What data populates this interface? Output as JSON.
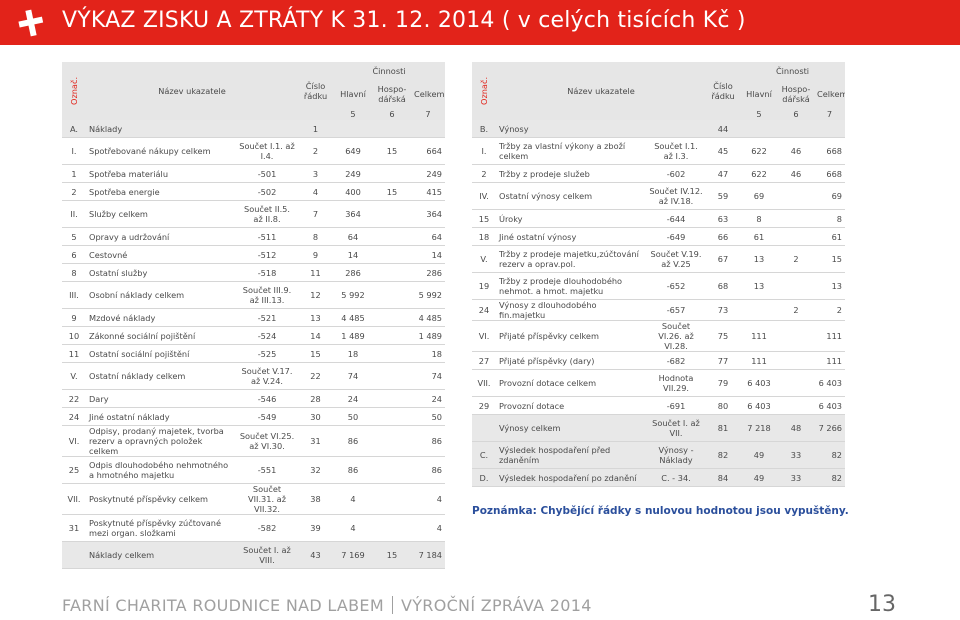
{
  "header": {
    "title": "VÝKAZ ZISKU A ZTRÁTY K 31. 12. 2014 ( v celých tisících Kč )"
  },
  "left_table": {
    "header": {
      "oznac": "Označ.",
      "nazev": "Název ukazatele",
      "cislo": "Číslo řádku",
      "cinnosti": "Činnosti",
      "hlavni": "Hlavní",
      "hospodarska": "Hospo-dářská",
      "celkem": "Celkem",
      "col5": "5",
      "col6": "6",
      "col7": "7"
    },
    "rows": [
      [
        "A.",
        "Náklady",
        null,
        "1",
        null,
        null,
        null
      ],
      [
        "I.",
        "Spotřebované nákupy celkem",
        "Součet I.1. až I.4.",
        "2",
        "649",
        "15",
        "664"
      ],
      [
        "1",
        "Spotřeba materiálu",
        "-501",
        "3",
        "249",
        null,
        "249"
      ],
      [
        "2",
        "Spotřeba energie",
        "-502",
        "4",
        "400",
        "15",
        "415"
      ],
      [
        "II.",
        "Služby celkem",
        "Součet II.5. až II.8.",
        "7",
        "364",
        null,
        "364"
      ],
      [
        "5",
        "Opravy a udržování",
        "-511",
        "8",
        "64",
        null,
        "64"
      ],
      [
        "6",
        "Cestovné",
        "-512",
        "9",
        "14",
        null,
        "14"
      ],
      [
        "8",
        "Ostatní služby",
        "-518",
        "11",
        "286",
        null,
        "286"
      ],
      [
        "III.",
        "Osobní náklady celkem",
        "Součet III.9. až III.13.",
        "12",
        "5 992",
        null,
        "5 992"
      ],
      [
        "9",
        "Mzdové náklady",
        "-521",
        "13",
        "4 485",
        null,
        "4 485"
      ],
      [
        "10",
        "Zákonné sociální pojištění",
        "-524",
        "14",
        "1 489",
        null,
        "1 489"
      ],
      [
        "11",
        "Ostatní sociální pojištění",
        "-525",
        "15",
        "18",
        null,
        "18"
      ],
      [
        "V.",
        "Ostatní náklady celkem",
        "Součet V.17. až V.24.",
        "22",
        "74",
        null,
        "74"
      ],
      [
        "22",
        "Dary",
        "-546",
        "28",
        "24",
        null,
        "24"
      ],
      [
        "24",
        "Jiné ostatní náklady",
        "-549",
        "30",
        "50",
        null,
        "50"
      ],
      [
        "VI.",
        "Odpisy, prodaný majetek, tvorba rezerv a opravných položek celkem",
        "Součet VI.25. až VI.30.",
        "31",
        "86",
        null,
        "86"
      ],
      [
        "25",
        "Odpis dlouhodobého nehmotného a hmotného majetku",
        "-551",
        "32",
        "86",
        null,
        "86"
      ],
      [
        "VII.",
        "Poskytnuté příspěvky celkem",
        "Součet VII.31. až VII.32.",
        "38",
        "4",
        null,
        "4"
      ],
      [
        "31",
        "Poskytnuté příspěvky zúčtované mezi organ. složkami",
        "-582",
        "39",
        "4",
        null,
        "4"
      ],
      [
        null,
        "Náklady celkem",
        "Součet I. až VIII.",
        "43",
        "7 169",
        "15",
        "7 184"
      ]
    ]
  },
  "right_table": {
    "header": {
      "oznac": "Označ.",
      "nazev": "Název ukazatele",
      "cislo": "Číslo řádku",
      "cinnosti": "Činnosti",
      "hlavni": "Hlavní",
      "hospodarska": "Hospo-dářská",
      "celkem": "Celkem",
      "col5": "5",
      "col6": "6",
      "col7": "7"
    },
    "rows": [
      [
        "B.",
        "Výnosy",
        null,
        "44",
        null,
        null,
        null
      ],
      [
        "I.",
        "Tržby za vlastní výkony a zboží celkem",
        "Součet I.1. až I.3.",
        "45",
        "622",
        "46",
        "668"
      ],
      [
        "2",
        "Tržby z prodeje služeb",
        "-602",
        "47",
        "622",
        "46",
        "668"
      ],
      [
        "IV.",
        "Ostatní výnosy celkem",
        "Součet IV.12. až IV.18.",
        "59",
        "69",
        null,
        "69"
      ],
      [
        "15",
        "Úroky",
        "-644",
        "63",
        "8",
        null,
        "8"
      ],
      [
        "18",
        "Jiné ostatní výnosy",
        "-649",
        "66",
        "61",
        null,
        "61"
      ],
      [
        "V.",
        "Tržby z prodeje majetku,zúčtování rezerv a oprav.pol.",
        "Součet V.19. až V.25",
        "67",
        "13",
        "2",
        "15"
      ],
      [
        "19",
        "Tržby z prodeje dlouhodobého nehmot. a hmot. majetku",
        "-652",
        "68",
        "13",
        null,
        "13"
      ],
      [
        "24",
        "Výnosy z dlouhodobého fin.majetku",
        "-657",
        "73",
        null,
        "2",
        "2"
      ],
      [
        "VI.",
        "Přijaté příspěvky celkem",
        "Součet VI.26. až VI.28.",
        "75",
        "111",
        null,
        "111"
      ],
      [
        "27",
        "Přijaté příspěvky (dary)",
        "-682",
        "77",
        "111",
        null,
        "111"
      ],
      [
        "VII.",
        "Provozní dotace celkem",
        "Hodnota VII.29.",
        "79",
        "6 403",
        null,
        "6 403"
      ],
      [
        "29",
        "Provozní dotace",
        "-691",
        "80",
        "6 403",
        null,
        "6 403"
      ],
      [
        null,
        "Výnosy celkem",
        "Součet I. až VII.",
        "81",
        "7 218",
        "48",
        "7 266"
      ],
      [
        "C.",
        "Výsledek hospodaření před zdaněním",
        "Výnosy - Náklady",
        "82",
        "49",
        "33",
        "82"
      ],
      [
        "D.",
        "Výsledek hospodaření po zdanění",
        "C. - 34.",
        "84",
        "49",
        "33",
        "82"
      ]
    ]
  },
  "note": "Poznámka: Chybějící řádky s nulovou hodnotou jsou vypuštěny.",
  "footer": {
    "org": "FARNÍ CHARITA ROUDNICE NAD LABEM",
    "publication": "VÝROČNÍ ZPRÁVA 2014",
    "page": "13"
  }
}
